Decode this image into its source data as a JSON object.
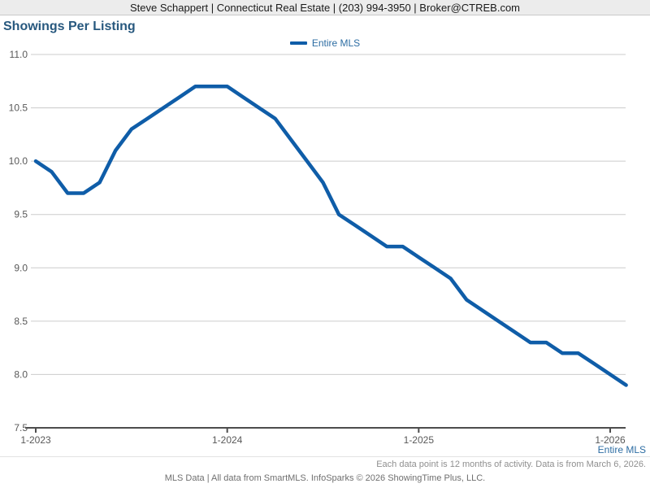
{
  "header": {
    "contact_line": "Steve Schappert | Connecticut Real Estate | (203) 994-3950 | Broker@CTREB.com"
  },
  "chart": {
    "title": "Showings Per Listing",
    "legend_label": "Entire MLS",
    "series_footer_label": "Entire MLS"
  },
  "chart_data": {
    "type": "line",
    "title": "Showings Per Listing",
    "x": [
      "1-2023",
      "2-2023",
      "3-2023",
      "4-2023",
      "5-2023",
      "6-2023",
      "7-2023",
      "8-2023",
      "9-2023",
      "10-2023",
      "11-2023",
      "12-2023",
      "1-2024",
      "2-2024",
      "3-2024",
      "4-2024",
      "5-2024",
      "6-2024",
      "7-2024",
      "8-2024",
      "9-2024",
      "10-2024",
      "11-2024",
      "12-2024",
      "1-2025",
      "2-2025",
      "3-2025",
      "4-2025",
      "5-2025",
      "6-2025",
      "7-2025",
      "8-2025",
      "9-2025",
      "10-2025",
      "11-2025",
      "12-2025",
      "1-2026",
      "2-2026"
    ],
    "x_tick_labels": [
      "1-2023",
      "1-2024",
      "1-2025",
      "1-2026"
    ],
    "series": [
      {
        "name": "Entire MLS",
        "color": "#0f5da8",
        "values": [
          10.0,
          9.9,
          9.7,
          9.7,
          9.8,
          10.1,
          10.3,
          10.4,
          10.5,
          10.6,
          10.7,
          10.7,
          10.7,
          10.6,
          10.5,
          10.4,
          10.2,
          10.0,
          9.8,
          9.5,
          9.4,
          9.3,
          9.2,
          9.2,
          9.1,
          9.0,
          8.9,
          8.7,
          8.6,
          8.5,
          8.4,
          8.3,
          8.3,
          8.2,
          8.2,
          8.1,
          8.0,
          7.9
        ]
      }
    ],
    "ylim": [
      7.5,
      11.0
    ],
    "ytick_step": 0.5,
    "grid": true,
    "legend_position": "top-center",
    "axis_color": "#4d4d4d",
    "gridline_color": "#cccccc"
  },
  "footer": {
    "note": "Each data point is 12 months of activity. Data is from March 6, 2026.",
    "attribution": "MLS Data | All data from SmartMLS. InfoSparks © 2026 ShowingTime Plus, LLC."
  }
}
